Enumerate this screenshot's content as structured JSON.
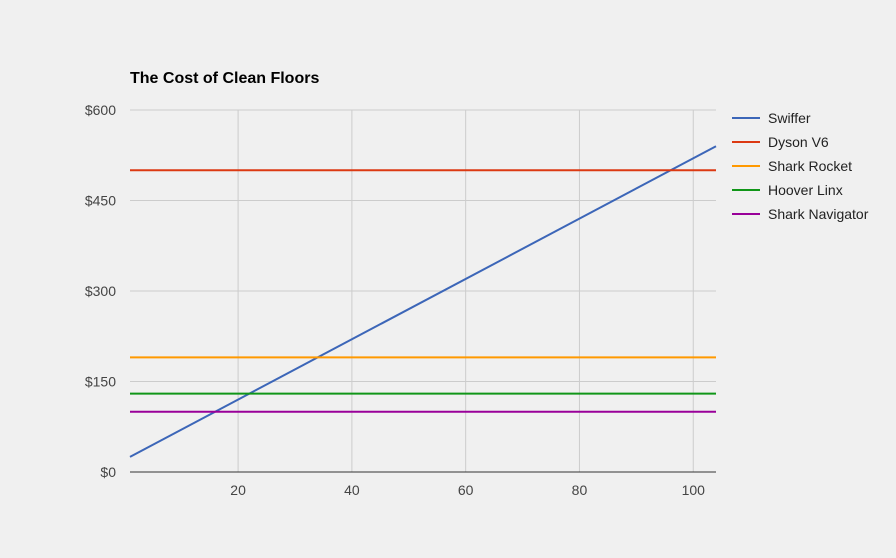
{
  "chart_data": {
    "type": "line",
    "title": "The Cost of Clean Floors",
    "xlabel": "",
    "ylabel": "",
    "xlim": [
      1,
      104
    ],
    "ylim": [
      0,
      600
    ],
    "x_ticks": [
      20,
      40,
      60,
      80,
      100
    ],
    "y_ticks": [
      0,
      150,
      300,
      450,
      600
    ],
    "y_tick_labels": [
      "$0",
      "$150",
      "$300",
      "$450",
      "$600"
    ],
    "grid": true,
    "legend_position": "right",
    "series": [
      {
        "name": "Swiffer",
        "color": "#3c66b8",
        "x": [
          1,
          104
        ],
        "y": [
          25,
          540
        ]
      },
      {
        "name": "Dyson V6",
        "color": "#dc3912",
        "x": [
          1,
          104
        ],
        "y": [
          500,
          500
        ]
      },
      {
        "name": "Shark Rocket",
        "color": "#ff9900",
        "x": [
          1,
          104
        ],
        "y": [
          190,
          190
        ]
      },
      {
        "name": "Hoover Linx",
        "color": "#109618",
        "x": [
          1,
          104
        ],
        "y": [
          130,
          130
        ]
      },
      {
        "name": "Shark Navigator",
        "color": "#990099",
        "x": [
          1,
          104
        ],
        "y": [
          100,
          100
        ]
      }
    ]
  }
}
